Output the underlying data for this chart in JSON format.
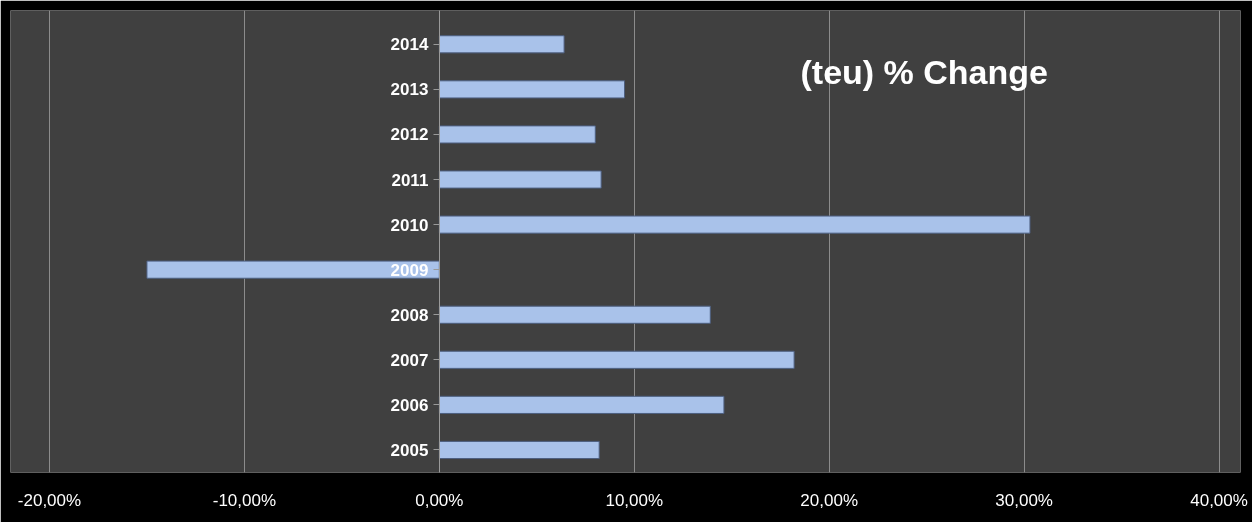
{
  "chart_data": {
    "type": "bar",
    "orientation": "horizontal",
    "title": "(teu) % Change",
    "categories": [
      "2014",
      "2013",
      "2012",
      "2011",
      "2010",
      "2009",
      "2008",
      "2007",
      "2006",
      "2005"
    ],
    "values": [
      6.4,
      9.5,
      8.0,
      8.3,
      30.3,
      -15.0,
      13.9,
      18.2,
      14.6,
      8.2
    ],
    "color": "#a9c2ea",
    "xlim": [
      -22,
      41.1
    ],
    "xticks": [
      {
        "value": -20,
        "label": "-20,00%"
      },
      {
        "value": -10,
        "label": "-10,00%"
      },
      {
        "value": 0,
        "label": "0,00%"
      },
      {
        "value": 10,
        "label": "10,00%"
      },
      {
        "value": 20,
        "label": "20,00%"
      },
      {
        "value": 30,
        "label": "30,00%"
      },
      {
        "value": 40,
        "label": "40,00%"
      }
    ],
    "grid": "x"
  }
}
